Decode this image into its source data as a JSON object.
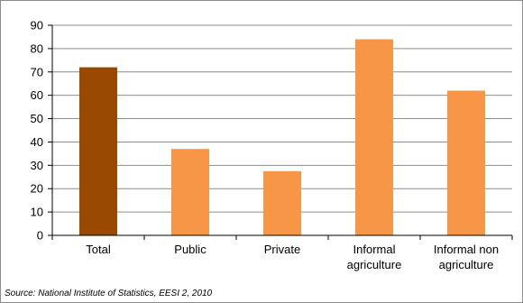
{
  "chart_data": {
    "type": "bar",
    "categories": [
      "Total",
      "Public",
      "Private",
      "Informal agriculture",
      "Informal non agriculture"
    ],
    "category_lines": [
      [
        "Total"
      ],
      [
        "Public"
      ],
      [
        "Private"
      ],
      [
        "Informal",
        "agriculture"
      ],
      [
        "Informal non",
        "agriculture"
      ]
    ],
    "values": [
      72,
      37,
      27.5,
      84,
      62
    ],
    "ylim": [
      0,
      90
    ],
    "yticks": [
      "0",
      "10",
      "20",
      "30",
      "40",
      "50",
      "60",
      "70",
      "80",
      "90"
    ],
    "grid": true,
    "legend": "none",
    "colors": {
      "highlight": "#9a4a00",
      "bar": "#f79646",
      "grid": "#8c8c8c",
      "axis": "#000000"
    },
    "highlight_index": 0
  },
  "source": "Source: National Institute of Statistics, EESI 2, 2010"
}
